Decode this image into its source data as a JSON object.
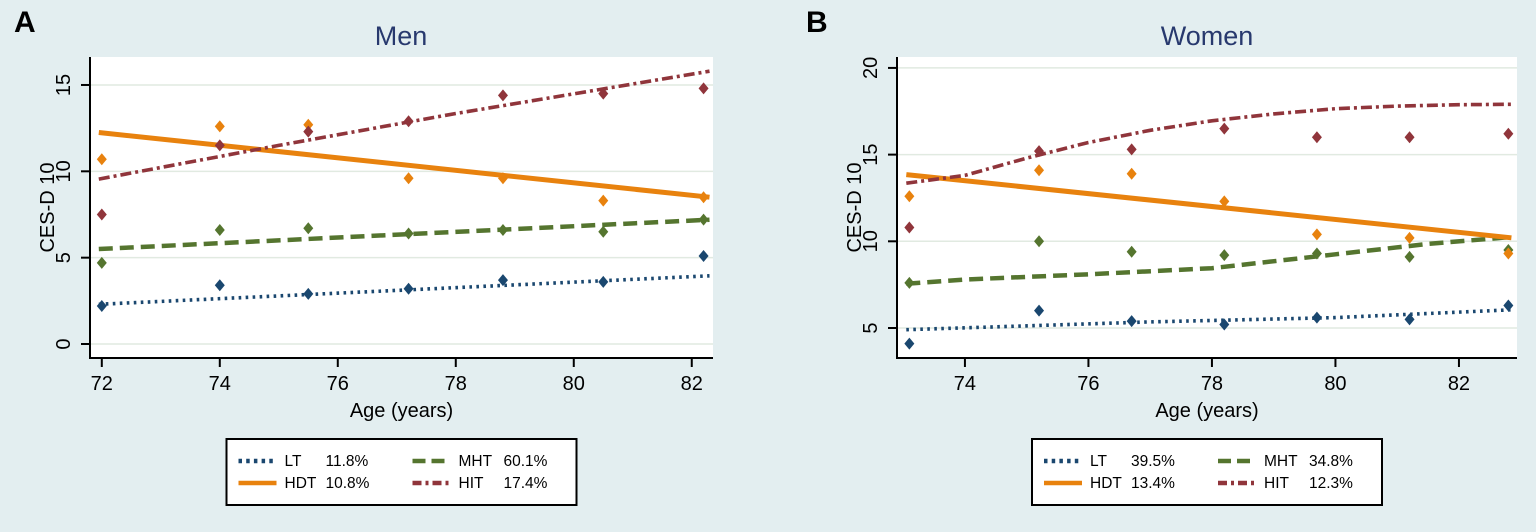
{
  "figure": {
    "background_color": "#e3eef0",
    "plot_background_color": "#ffffff",
    "gridline_color": "#e1eae1",
    "axis_color": "#000000",
    "tick_label_color": "#000000",
    "title_color": "#28396e",
    "legend_border_color": "#000000",
    "legend_background_color": "#ffffff"
  },
  "chart_data": [
    {
      "type": "scatter",
      "panel_label": "A",
      "title": "Men",
      "xlabel": "Age (years)",
      "ylabel": "CES-D 10",
      "x_ticks": [
        72,
        74,
        76,
        78,
        80,
        82
      ],
      "y_ticks": [
        0,
        5,
        10,
        15
      ],
      "xlim": [
        71.8,
        82.36
      ],
      "ylim": [
        -0.81,
        16.62
      ],
      "grid": "horizontal",
      "legend_position": "below-center",
      "legend_order": [
        "LT",
        "MHT",
        "HDT",
        "HIT"
      ],
      "series": [
        {
          "name": "LT",
          "share": "11.8%",
          "color": "#1a476f",
          "line_style": "dotted",
          "trend": [
            [
              71.95,
              2.3
            ],
            [
              82.3,
              3.95
            ]
          ],
          "points": [
            [
              72,
              2.2
            ],
            [
              74,
              3.4
            ],
            [
              75.5,
              2.9
            ],
            [
              77.2,
              3.2
            ],
            [
              78.8,
              3.7
            ],
            [
              80.5,
              3.6
            ],
            [
              82.2,
              5.1
            ]
          ]
        },
        {
          "name": "MHT",
          "share": "60.1%",
          "color": "#55752f",
          "line_style": "dashed",
          "trend": [
            [
              71.95,
              5.5
            ],
            [
              82.3,
              7.2
            ]
          ],
          "points": [
            [
              72,
              4.7
            ],
            [
              74,
              6.6
            ],
            [
              75.5,
              6.7
            ],
            [
              77.2,
              6.4
            ],
            [
              78.8,
              6.6
            ],
            [
              80.5,
              6.5
            ],
            [
              82.2,
              7.2
            ]
          ]
        },
        {
          "name": "HDT",
          "share": "10.8%",
          "color": "#e8820e",
          "line_style": "solid",
          "trend": [
            [
              71.95,
              12.25
            ],
            [
              82.3,
              8.5
            ]
          ],
          "points": [
            [
              72,
              10.7
            ],
            [
              74,
              12.6
            ],
            [
              75.5,
              12.7
            ],
            [
              77.2,
              9.6
            ],
            [
              78.8,
              9.6
            ],
            [
              80.5,
              8.3
            ],
            [
              82.2,
              8.5
            ]
          ]
        },
        {
          "name": "HIT",
          "share": "17.4%",
          "color": "#90353b",
          "line_style": "dashdot",
          "trend": [
            [
              71.95,
              9.55
            ],
            [
              75,
              11.5
            ],
            [
              78,
              13.35
            ],
            [
              82.3,
              15.8
            ]
          ],
          "points": [
            [
              72,
              7.5
            ],
            [
              74,
              11.5
            ],
            [
              75.5,
              12.3
            ],
            [
              77.2,
              12.9
            ],
            [
              78.8,
              14.4
            ],
            [
              80.5,
              14.5
            ],
            [
              82.2,
              14.8
            ]
          ]
        }
      ]
    },
    {
      "type": "scatter",
      "panel_label": "B",
      "title": "Women",
      "xlabel": "Age (years)",
      "ylabel": "CES-D 10",
      "x_ticks": [
        74,
        76,
        78,
        80,
        82
      ],
      "y_ticks": [
        5,
        10,
        15,
        20
      ],
      "xlim": [
        72.9,
        82.94
      ],
      "ylim": [
        3.27,
        20.63
      ],
      "grid": "horizontal",
      "legend_position": "below-center",
      "legend_order": [
        "LT",
        "MHT",
        "HDT",
        "HIT"
      ],
      "series": [
        {
          "name": "LT",
          "share": "39.5%",
          "color": "#1a476f",
          "line_style": "dotted",
          "trend": [
            [
              73.05,
              4.9
            ],
            [
              77,
              5.35
            ],
            [
              80,
              5.6
            ],
            [
              82.85,
              6.05
            ]
          ],
          "points": [
            [
              73.1,
              4.1
            ],
            [
              75.2,
              6.0
            ],
            [
              76.7,
              5.4
            ],
            [
              78.2,
              5.2
            ],
            [
              79.7,
              5.6
            ],
            [
              81.2,
              5.5
            ],
            [
              82.8,
              6.3
            ]
          ]
        },
        {
          "name": "MHT",
          "share": "34.8%",
          "color": "#55752f",
          "line_style": "dashed",
          "trend": [
            [
              73.05,
              7.55
            ],
            [
              74,
              7.8
            ],
            [
              76,
              8.1
            ],
            [
              78,
              8.45
            ],
            [
              80,
              9.25
            ],
            [
              81.5,
              9.85
            ],
            [
              82.85,
              10.25
            ]
          ],
          "points": [
            [
              73.1,
              7.6
            ],
            [
              75.2,
              10.0
            ],
            [
              76.7,
              9.4
            ],
            [
              78.2,
              9.2
            ],
            [
              79.7,
              9.3
            ],
            [
              81.2,
              9.1
            ],
            [
              82.8,
              9.5
            ]
          ]
        },
        {
          "name": "HDT",
          "share": "13.4%",
          "color": "#e8820e",
          "line_style": "solid",
          "trend": [
            [
              73.05,
              13.85
            ],
            [
              82.85,
              10.2
            ]
          ],
          "points": [
            [
              73.1,
              12.6
            ],
            [
              75.2,
              14.1
            ],
            [
              76.7,
              13.9
            ],
            [
              78.2,
              12.3
            ],
            [
              79.7,
              10.4
            ],
            [
              81.2,
              10.2
            ],
            [
              82.8,
              9.3
            ]
          ]
        },
        {
          "name": "HIT",
          "share": "12.3%",
          "color": "#90353b",
          "line_style": "dashdot",
          "trend": [
            [
              73.05,
              13.35
            ],
            [
              74,
              13.8
            ],
            [
              75,
              14.8
            ],
            [
              76,
              15.7
            ],
            [
              77,
              16.4
            ],
            [
              78,
              16.95
            ],
            [
              79,
              17.35
            ],
            [
              80,
              17.65
            ],
            [
              81,
              17.8
            ],
            [
              82,
              17.88
            ],
            [
              82.85,
              17.9
            ]
          ],
          "points": [
            [
              73.1,
              10.8
            ],
            [
              75.2,
              15.2
            ],
            [
              76.7,
              15.3
            ],
            [
              78.2,
              16.5
            ],
            [
              79.7,
              16.0
            ],
            [
              81.2,
              16.0
            ],
            [
              82.8,
              16.2
            ]
          ]
        }
      ]
    }
  ]
}
